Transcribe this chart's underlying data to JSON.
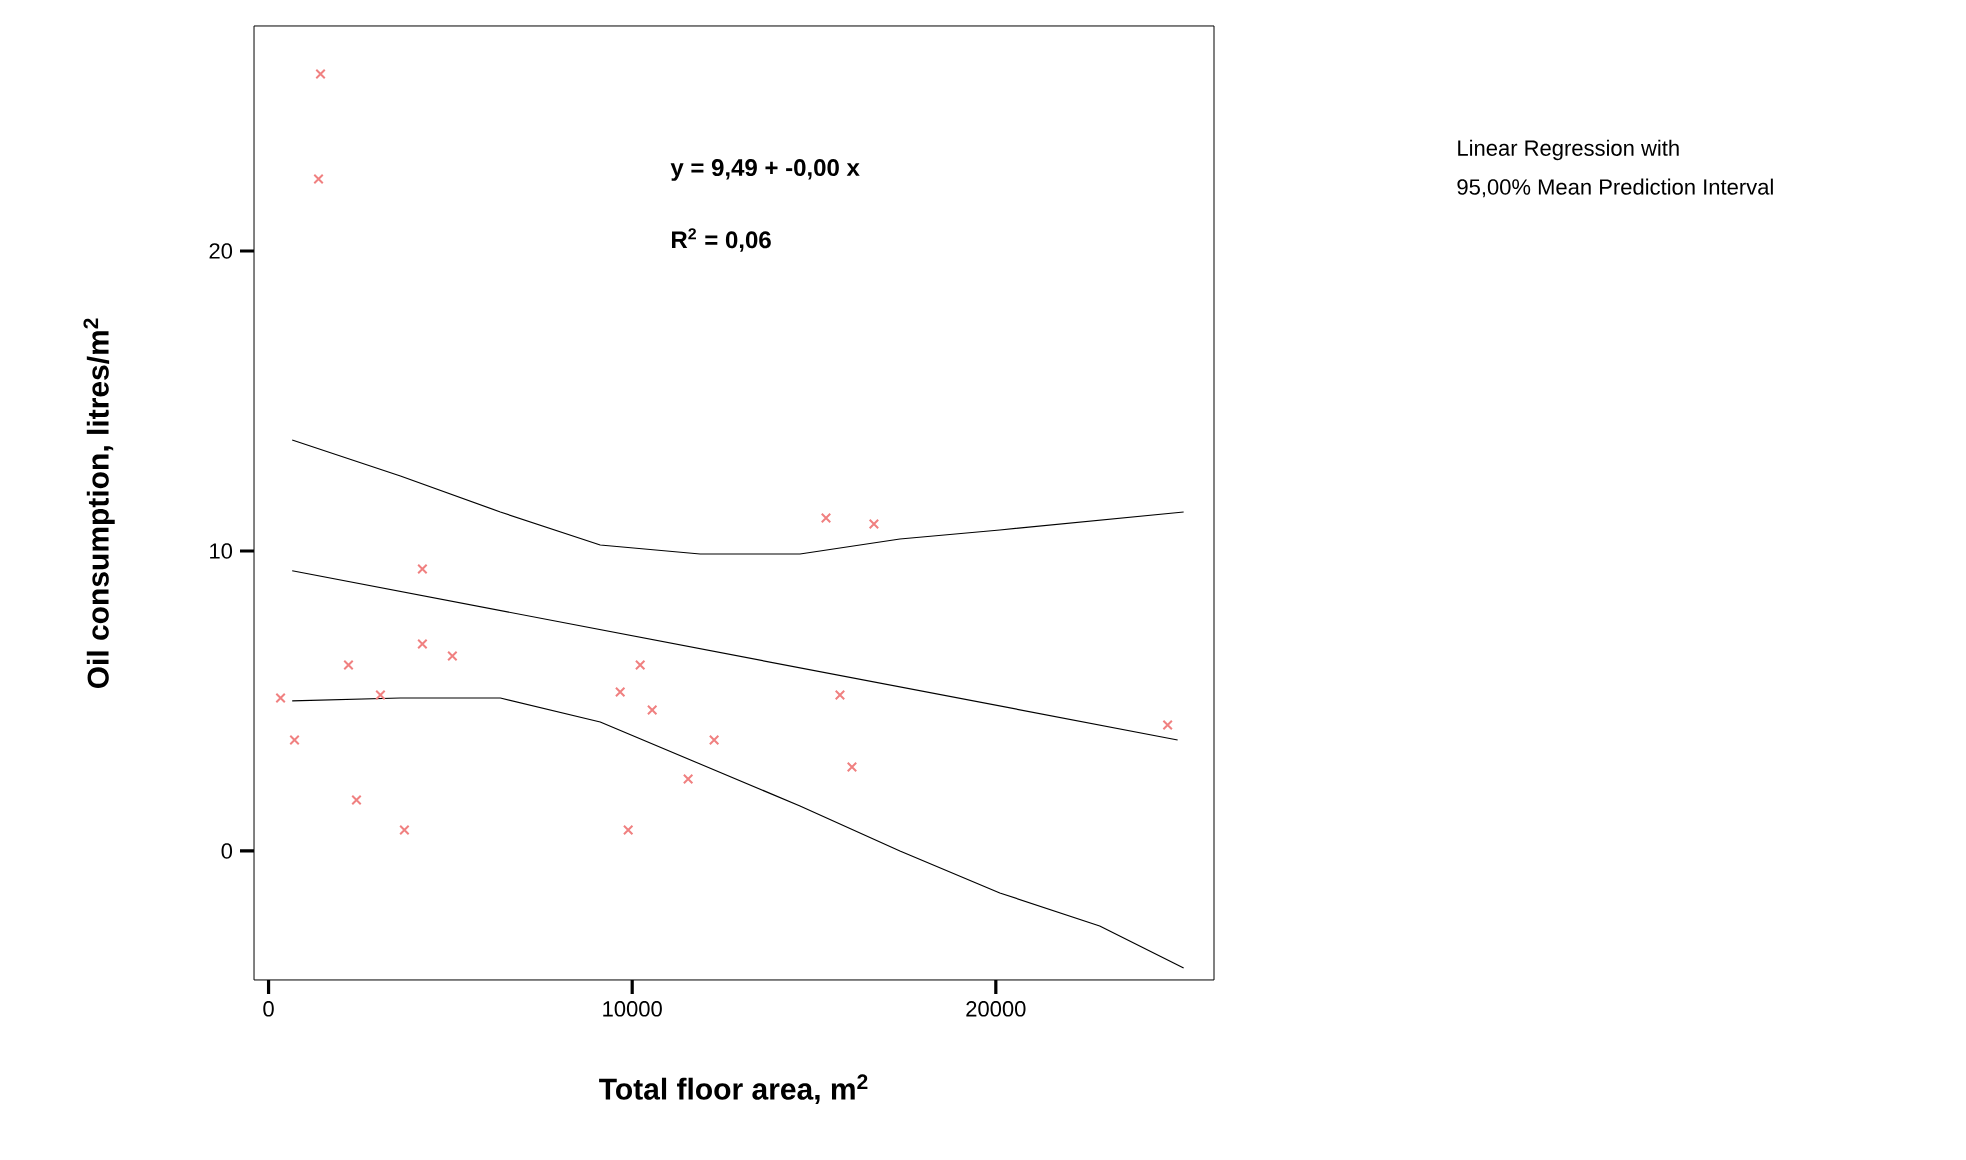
{
  "chart_data": {
    "type": "scatter",
    "xlabel": "Total floor area, m$^{2}$",
    "ylabel": "Oil consumption, litres/m$^{2}$",
    "annotations": [
      "y = 9,49 + -0,00 x",
      "R$^{2}$ = 0,06",
      "Linear Regression with",
      "95,00% Mean Prediction Interval"
    ],
    "xlim": [
      -400,
      26000
    ],
    "ylim": [
      -4.3,
      27.5
    ],
    "xticks": [
      0,
      10000,
      20000
    ],
    "yticks": [
      0,
      10,
      20
    ],
    "grid": false,
    "series": [
      {
        "marker": "cross",
        "color": "#f08080",
        "x": [
          330,
          714,
          1374,
          1429,
          2198,
          2418,
          3077,
          3736,
          4231,
          4231,
          5055,
          9670,
          9890,
          10220,
          10550,
          11538,
          12253,
          15330,
          15714,
          16044,
          16648,
          24725
        ],
        "values": [
          5.1,
          3.7,
          22.4,
          25.9,
          6.2,
          1.7,
          5.2,
          0.7,
          6.9,
          9.4,
          6.5,
          5.3,
          0.7,
          6.2,
          4.7,
          2.4,
          3.7,
          11.1,
          5.2,
          2.8,
          10.9,
          4.2
        ]
      },
      {
        "type": "line",
        "marker": "none",
        "color": "#000000",
        "x": [
          650,
          25000
        ],
        "values": [
          9.34,
          3.7
        ]
      },
      {
        "type": "line",
        "marker": "none",
        "color": "#000000",
        "x": [
          650,
          3626,
          6374,
          9121,
          11868,
          14615,
          17363,
          20110,
          25165
        ],
        "values": [
          13.7,
          12.5,
          11.3,
          10.2,
          9.9,
          9.9,
          10.4,
          10.7,
          11.3
        ]
      },
      {
        "type": "line",
        "marker": "none",
        "color": "#000000",
        "x": [
          650,
          3626,
          6374,
          9121,
          11868,
          14615,
          17363,
          20110,
          22857,
          25165
        ],
        "values": [
          5.0,
          5.1,
          5.1,
          4.3,
          2.9,
          1.5,
          0.0,
          -1.4,
          -2.5,
          -3.9
        ]
      }
    ]
  }
}
